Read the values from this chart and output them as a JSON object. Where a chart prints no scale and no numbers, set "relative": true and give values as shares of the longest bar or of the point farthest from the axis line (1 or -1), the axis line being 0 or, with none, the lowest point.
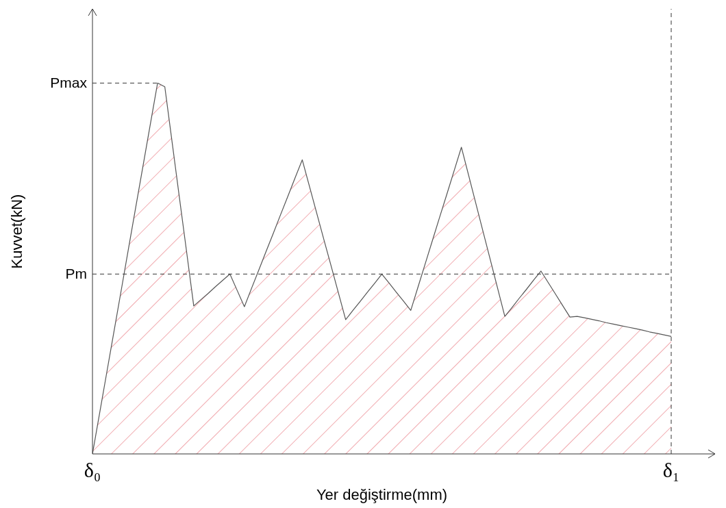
{
  "chart_data": {
    "type": "area",
    "relative": true,
    "xlabel": "Yer değiştirme(mm)",
    "ylabel": "Kuvvet(kN)",
    "categories": [
      "δ₀",
      null,
      null,
      null,
      null,
      null,
      null,
      null,
      null,
      null,
      null,
      null,
      null,
      null,
      null,
      null,
      null,
      null,
      null,
      null,
      null,
      null,
      null,
      null,
      null,
      null,
      null,
      null,
      null,
      null,
      null,
      null,
      null,
      null,
      null,
      null,
      null,
      null,
      null,
      null,
      null,
      null,
      null,
      null,
      null,
      null,
      null,
      null,
      null,
      null,
      null,
      null,
      null,
      null,
      null,
      null,
      null,
      null,
      null,
      null,
      null,
      null,
      null,
      null,
      null,
      null,
      null,
      null,
      null,
      null,
      null,
      null,
      null,
      null,
      null,
      null,
      null,
      null,
      null,
      null,
      "δ₁"
    ],
    "series": [
      {
        "color": "#e8727a",
        "values": [
          0,
          0.111,
          0.222,
          0.333,
          0.444,
          0.556,
          0.667,
          0.778,
          0.889,
          1,
          0.99,
          0.842,
          0.694,
          0.547,
          0.399,
          0.416,
          0.433,
          0.451,
          0.468,
          0.485,
          0.441,
          0.397,
          0.447,
          0.496,
          0.546,
          0.595,
          0.645,
          0.694,
          0.744,
          0.793,
          0.721,
          0.649,
          0.577,
          0.506,
          0.434,
          0.362,
          0.387,
          0.411,
          0.436,
          0.46,
          0.485,
          0.461,
          0.436,
          0.412,
          0.387,
          0.45,
          0.513,
          0.576,
          0.639,
          0.701,
          0.764,
          0.827,
          0.751,
          0.675,
          0.599,
          0.523,
          0.447,
          0.371,
          0.395,
          0.42,
          0.444,
          0.469,
          0.493,
          0.462,
          0.431,
          0.4,
          0.369,
          0.371,
          0.367,
          0.363,
          0.359,
          0.354,
          0.35,
          0.346,
          0.342,
          0.338,
          0.334,
          0.329,
          0.325,
          0.321,
          0.317
        ]
      }
    ],
    "ref_lines": [
      {
        "axis": "y",
        "value": 1,
        "label": "Pmax",
        "line_style": "dashed"
      },
      {
        "axis": "y",
        "value": 0.485,
        "label": "Pm",
        "line_style": "dashed"
      },
      {
        "axis": "x",
        "value": "δ₁",
        "line_style": "dashed"
      }
    ]
  }
}
